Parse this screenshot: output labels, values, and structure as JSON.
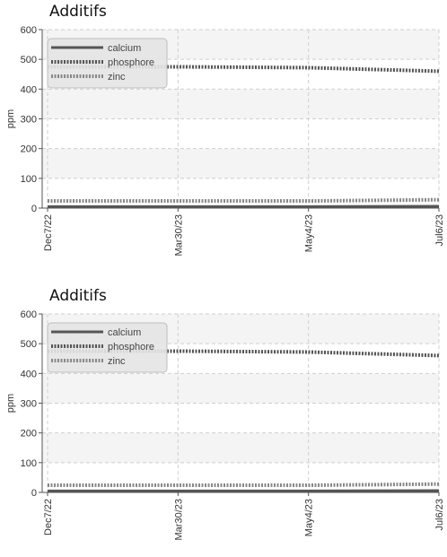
{
  "chart_data": [
    {
      "type": "line",
      "title": "Additifs",
      "xlabel": "",
      "ylabel": "ppm",
      "ylim": [
        0,
        600
      ],
      "yticks": [
        0,
        100,
        200,
        300,
        400,
        500,
        600
      ],
      "x_tick_labels": [
        "Dec7/22",
        "Mar30/23",
        "May4/23",
        "Jul6/23"
      ],
      "legend_position": "top-left",
      "grid": true,
      "series": [
        {
          "name": "calcium",
          "style": "solid",
          "color": "#555555",
          "x": [
            "Dec7/22",
            "Mar30/23",
            "May4/23",
            "Jul6/23"
          ],
          "values": [
            5,
            5,
            5,
            6
          ]
        },
        {
          "name": "phosphore",
          "style": "dashed",
          "color": "#555555",
          "x": [
            "Dec7/22",
            "Mar30/23",
            "May4/23",
            "Jul6/23"
          ],
          "values": [
            475,
            475,
            472,
            460
          ]
        },
        {
          "name": "zinc",
          "style": "dashed",
          "color": "#888888",
          "x": [
            "Dec7/22",
            "Mar30/23",
            "May4/23",
            "Jul6/23"
          ],
          "values": [
            24,
            24,
            24,
            28
          ]
        }
      ]
    },
    {
      "type": "line",
      "title": "Additifs",
      "xlabel": "",
      "ylabel": "ppm",
      "ylim": [
        0,
        600
      ],
      "yticks": [
        0,
        100,
        200,
        300,
        400,
        500,
        600
      ],
      "x_tick_labels": [
        "Dec7/22",
        "Mar30/23",
        "May4/23",
        "Jul6/23"
      ],
      "legend_position": "top-left",
      "grid": true,
      "series": [
        {
          "name": "calcium",
          "style": "solid",
          "color": "#555555",
          "x": [
            "Dec7/22",
            "Mar30/23",
            "May4/23",
            "Jul6/23"
          ],
          "values": [
            5,
            5,
            5,
            6
          ]
        },
        {
          "name": "phosphore",
          "style": "dashed",
          "color": "#555555",
          "x": [
            "Dec7/22",
            "Mar30/23",
            "May4/23",
            "Jul6/23"
          ],
          "values": [
            475,
            475,
            472,
            460
          ]
        },
        {
          "name": "zinc",
          "style": "dashed",
          "color": "#888888",
          "x": [
            "Dec7/22",
            "Mar30/23",
            "May4/23",
            "Jul6/23"
          ],
          "values": [
            24,
            24,
            24,
            28
          ]
        }
      ]
    }
  ]
}
